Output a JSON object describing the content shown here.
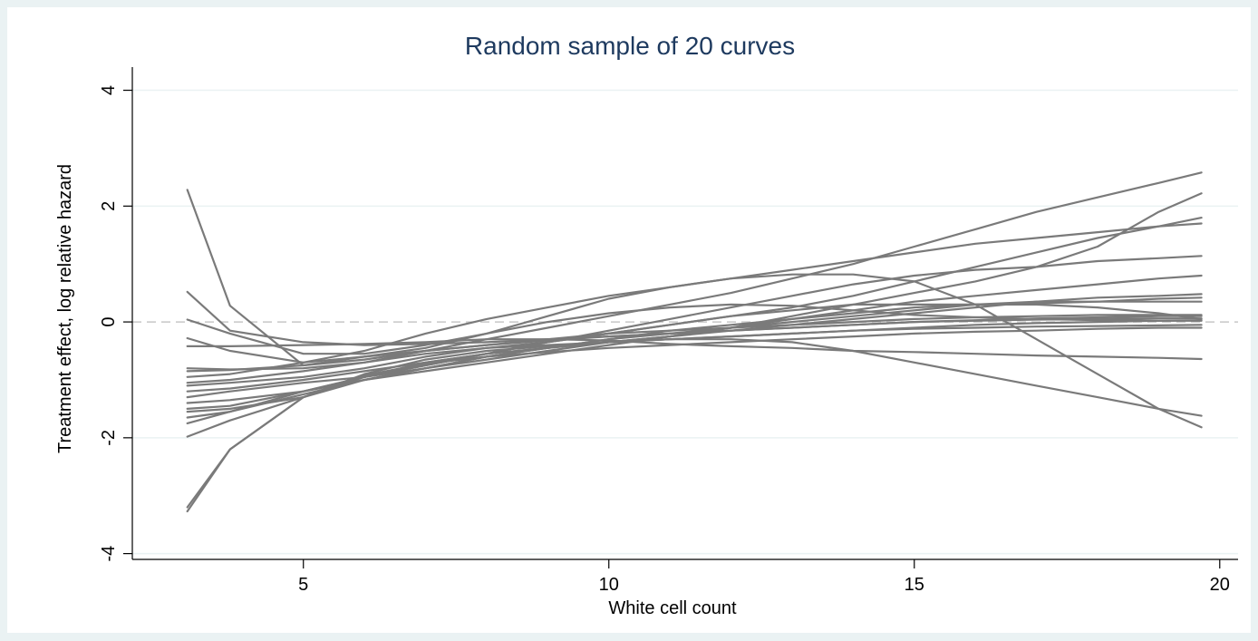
{
  "chart_data": {
    "type": "line",
    "title": "Random sample of 20 curves",
    "xlabel": "White cell count",
    "ylabel": "Treatment effect, log relative hazard",
    "xlim": [
      2.2,
      20.3
    ],
    "ylim": [
      -4.1,
      4.4
    ],
    "xticks": [
      5,
      10,
      15,
      20
    ],
    "yticks": [
      -4,
      -2,
      0,
      2,
      4
    ],
    "grid": true,
    "legend": "none",
    "reference_line_y": 0,
    "colors": {
      "line": "#7a7a7a",
      "grid": "#eaf2f3",
      "reference": "#c8c8c8",
      "title": "#1e3a5f",
      "background": "#eaf2f3",
      "plot_background": "#ffffff"
    },
    "x": [
      3.1,
      3.8,
      5,
      6,
      7,
      8,
      9,
      10,
      11,
      12,
      13,
      14,
      15,
      16,
      17,
      18,
      19,
      19.7
    ],
    "series": [
      {
        "values": [
          2.28,
          0.28,
          -0.75,
          -0.65,
          -0.5,
          -0.4,
          -0.32,
          -0.25,
          -0.2,
          -0.15,
          -0.1,
          -0.05,
          0.0,
          0.02,
          0.04,
          0.05,
          0.06,
          0.06
        ]
      },
      {
        "values": [
          0.52,
          -0.15,
          -0.35,
          -0.4,
          -0.38,
          -0.35,
          -0.3,
          -0.25,
          -0.2,
          -0.15,
          -0.1,
          -0.05,
          0.0,
          0.03,
          0.06,
          0.08,
          0.1,
          0.1
        ]
      },
      {
        "values": [
          0.04,
          -0.2,
          -0.55,
          -0.55,
          -0.4,
          -0.2,
          0.0,
          0.15,
          0.25,
          0.3,
          0.28,
          0.2,
          0.12,
          0.08,
          0.05,
          0.03,
          0.02,
          0.02
        ]
      },
      {
        "values": [
          -0.28,
          -0.5,
          -0.7,
          -0.6,
          -0.45,
          -0.2,
          0.1,
          0.4,
          0.6,
          0.75,
          0.82,
          0.82,
          0.7,
          0.3,
          -0.3,
          -0.9,
          -1.5,
          -1.82
        ]
      },
      {
        "values": [
          -0.42,
          -0.42,
          -0.4,
          -0.38,
          -0.35,
          -0.3,
          -0.3,
          -0.32,
          -0.38,
          -0.42,
          -0.45,
          -0.5,
          -0.52,
          -0.55,
          -0.58,
          -0.6,
          -0.62,
          -0.64
        ]
      },
      {
        "values": [
          -0.8,
          -0.82,
          -0.8,
          -0.7,
          -0.55,
          -0.45,
          -0.4,
          -0.35,
          -0.3,
          -0.3,
          -0.35,
          -0.5,
          -0.7,
          -0.9,
          -1.1,
          -1.3,
          -1.5,
          -1.62
        ]
      },
      {
        "values": [
          -0.85,
          -0.83,
          -0.75,
          -0.6,
          -0.5,
          -0.4,
          -0.3,
          -0.2,
          -0.15,
          -0.1,
          -0.05,
          0.0,
          0.05,
          0.08,
          0.1,
          0.12,
          0.12,
          0.12
        ]
      },
      {
        "values": [
          -0.95,
          -0.9,
          -0.7,
          -0.5,
          -0.2,
          0.05,
          0.25,
          0.45,
          0.6,
          0.75,
          0.9,
          1.05,
          1.2,
          1.35,
          1.45,
          1.55,
          1.65,
          1.7
        ]
      },
      {
        "values": [
          -1.05,
          -1.0,
          -0.85,
          -0.7,
          -0.5,
          -0.3,
          -0.1,
          0.1,
          0.3,
          0.5,
          0.75,
          1.0,
          1.3,
          1.6,
          1.9,
          2.15,
          2.4,
          2.58
        ]
      },
      {
        "values": [
          -1.1,
          -1.05,
          -0.95,
          -0.8,
          -0.6,
          -0.45,
          -0.35,
          -0.2,
          -0.05,
          0.1,
          0.25,
          0.45,
          0.7,
          0.95,
          1.2,
          1.45,
          1.65,
          1.8
        ]
      },
      {
        "values": [
          -1.2,
          -1.15,
          -1.0,
          -0.85,
          -0.7,
          -0.55,
          -0.45,
          -0.35,
          -0.25,
          -0.15,
          -0.05,
          0.05,
          0.15,
          0.25,
          0.35,
          0.42,
          0.45,
          0.48
        ]
      },
      {
        "values": [
          -1.3,
          -1.2,
          -1.05,
          -0.95,
          -0.8,
          -0.65,
          -0.5,
          -0.35,
          -0.25,
          -0.1,
          0.1,
          0.3,
          0.5,
          0.7,
          0.95,
          1.3,
          1.9,
          2.22
        ]
      },
      {
        "values": [
          -1.4,
          -1.35,
          -1.2,
          -1.0,
          -0.85,
          -0.7,
          -0.55,
          -0.4,
          -0.25,
          -0.1,
          0.05,
          0.2,
          0.35,
          0.45,
          0.55,
          0.65,
          0.75,
          0.8
        ]
      },
      {
        "values": [
          -1.5,
          -1.45,
          -1.2,
          -0.95,
          -0.75,
          -0.55,
          -0.35,
          -0.15,
          0.05,
          0.25,
          0.45,
          0.65,
          0.8,
          0.9,
          0.95,
          1.05,
          1.1,
          1.14
        ]
      },
      {
        "values": [
          -1.55,
          -1.5,
          -1.3,
          -1.0,
          -0.8,
          -0.6,
          -0.45,
          -0.3,
          -0.2,
          -0.1,
          0.0,
          0.1,
          0.2,
          0.3,
          0.32,
          0.35,
          0.4,
          0.42
        ]
      },
      {
        "values": [
          -1.65,
          -1.55,
          -1.25,
          -1.0,
          -0.8,
          -0.6,
          -0.45,
          -0.3,
          -0.15,
          -0.05,
          0.05,
          0.15,
          0.25,
          0.3,
          0.35,
          0.35,
          0.35,
          0.35
        ]
      },
      {
        "values": [
          -1.75,
          -1.55,
          -1.2,
          -0.95,
          -0.75,
          -0.55,
          -0.35,
          -0.2,
          -0.05,
          0.1,
          0.2,
          0.3,
          0.3,
          0.3,
          0.3,
          0.25,
          0.15,
          0.05
        ]
      },
      {
        "values": [
          -1.98,
          -1.7,
          -1.3,
          -0.95,
          -0.7,
          -0.55,
          -0.45,
          -0.35,
          -0.3,
          -0.25,
          -0.2,
          -0.15,
          -0.12,
          -0.1,
          -0.08,
          -0.07,
          -0.06,
          -0.05
        ]
      },
      {
        "values": [
          -3.2,
          -2.2,
          -1.3,
          -0.9,
          -0.65,
          -0.5,
          -0.42,
          -0.35,
          -0.3,
          -0.25,
          -0.2,
          -0.15,
          -0.1,
          -0.05,
          -0.02,
          0.0,
          0.02,
          0.03
        ]
      },
      {
        "values": [
          -3.27,
          -2.2,
          -1.3,
          -0.92,
          -0.72,
          -0.6,
          -0.52,
          -0.45,
          -0.4,
          -0.35,
          -0.3,
          -0.25,
          -0.2,
          -0.17,
          -0.15,
          -0.12,
          -0.1,
          -0.1
        ]
      }
    ]
  }
}
